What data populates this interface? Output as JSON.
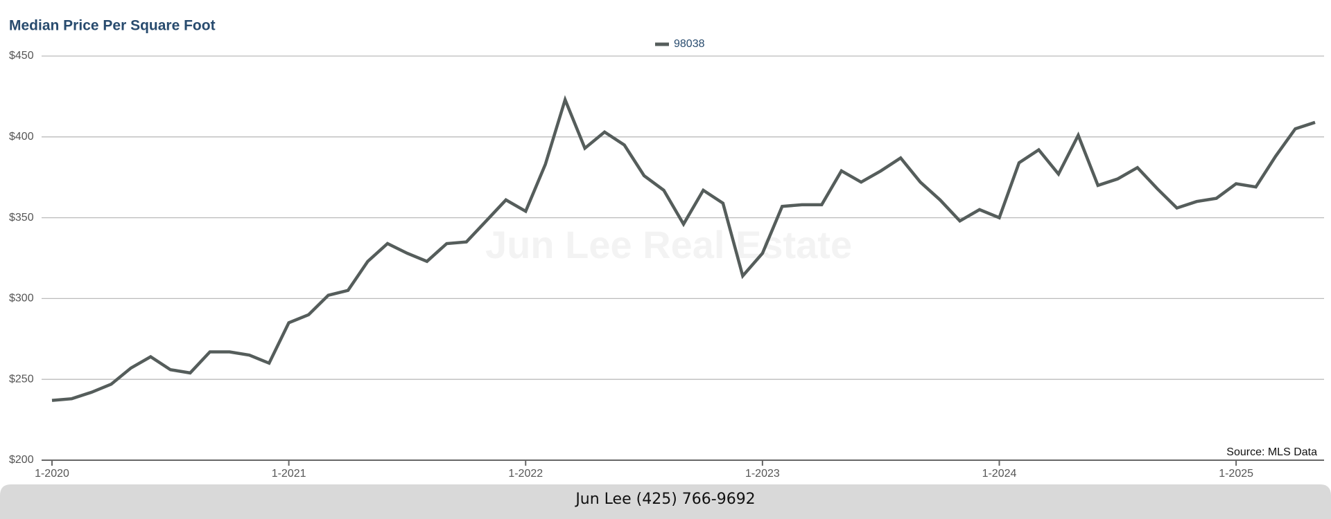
{
  "chart_data": {
    "type": "line",
    "title": "Median Price Per Square Foot",
    "watermark": "Jun Lee Real Estate",
    "source": "Source: MLS Data",
    "footer": "Jun Lee (425) 766-9692",
    "categories": [
      "1-2020",
      "2-2020",
      "3-2020",
      "4-2020",
      "5-2020",
      "6-2020",
      "7-2020",
      "8-2020",
      "9-2020",
      "10-2020",
      "11-2020",
      "12-2020",
      "1-2021",
      "2-2021",
      "3-2021",
      "4-2021",
      "5-2021",
      "6-2021",
      "7-2021",
      "8-2021",
      "9-2021",
      "10-2021",
      "11-2021",
      "12-2021",
      "1-2022",
      "2-2022",
      "3-2022",
      "4-2022",
      "5-2022",
      "6-2022",
      "7-2022",
      "8-2022",
      "9-2022",
      "10-2022",
      "11-2022",
      "12-2022",
      "1-2023",
      "2-2023",
      "3-2023",
      "4-2023",
      "5-2023",
      "6-2023",
      "7-2023",
      "8-2023",
      "9-2023",
      "10-2023",
      "11-2023",
      "12-2023",
      "1-2024",
      "2-2024",
      "3-2024",
      "4-2024",
      "5-2024",
      "6-2024",
      "7-2024",
      "8-2024",
      "9-2024",
      "10-2024",
      "11-2024",
      "12-2024",
      "1-2025",
      "2-2025",
      "3-2025",
      "4-2025",
      "5-2025"
    ],
    "series": [
      {
        "name": "98038",
        "color": "#555d5b",
        "values": [
          237,
          238,
          242,
          247,
          257,
          264,
          256,
          254,
          267,
          267,
          265,
          260,
          285,
          290,
          302,
          305,
          323,
          334,
          328,
          323,
          334,
          335,
          348,
          361,
          354,
          383,
          423,
          393,
          403,
          395,
          376,
          367,
          346,
          367,
          359,
          314,
          328,
          357,
          358,
          358,
          379,
          372,
          379,
          387,
          372,
          361,
          348,
          355,
          350,
          384,
          392,
          377,
          401,
          370,
          374,
          381,
          368,
          356,
          360,
          362,
          371,
          369,
          388,
          405,
          409
        ]
      }
    ],
    "xticks": [
      "1-2020",
      "1-2021",
      "1-2022",
      "1-2023",
      "1-2024",
      "1-2025"
    ],
    "ylim": [
      200,
      450
    ],
    "yticks": [
      {
        "value": 200,
        "label": "$200"
      },
      {
        "value": 250,
        "label": "$250"
      },
      {
        "value": 300,
        "label": "$300"
      },
      {
        "value": 350,
        "label": "$350"
      },
      {
        "value": 400,
        "label": "$400"
      },
      {
        "value": 450,
        "label": "$450"
      }
    ],
    "grid": true
  }
}
